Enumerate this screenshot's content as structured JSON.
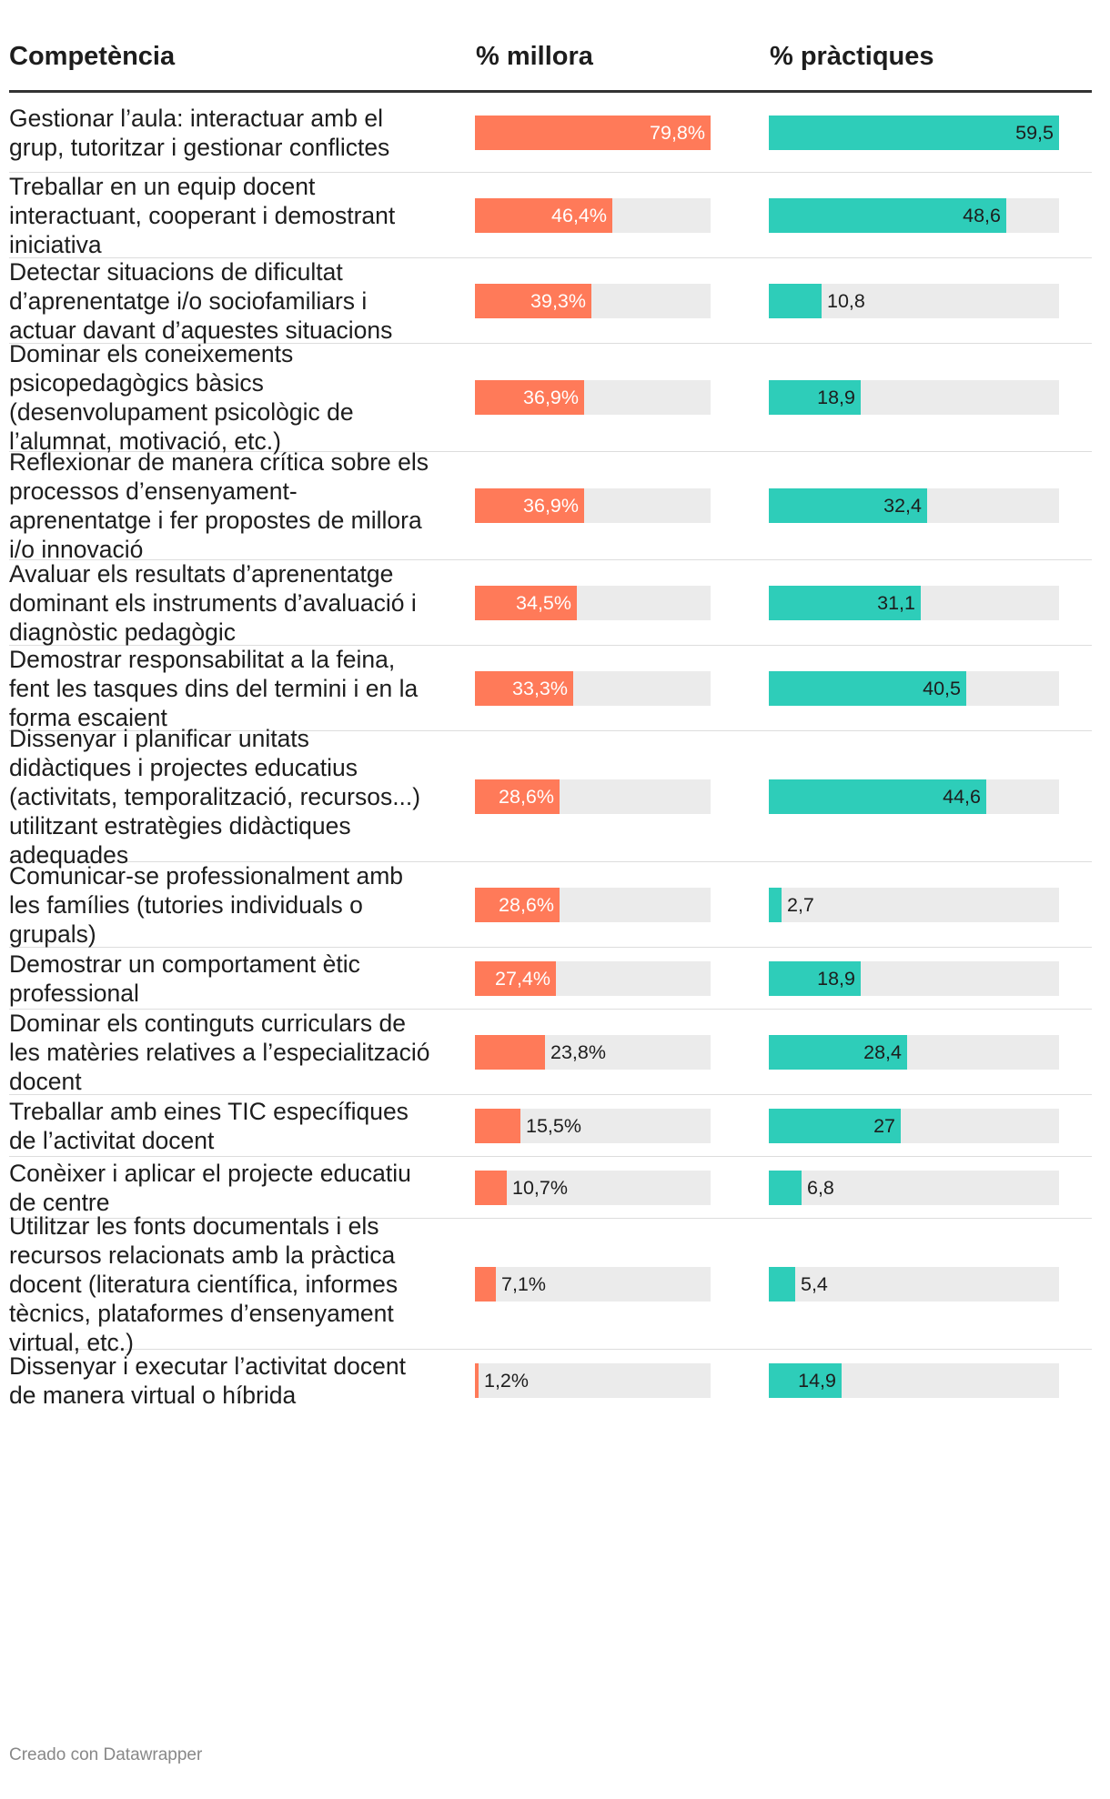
{
  "chart_data": {
    "type": "table",
    "headers": {
      "competencia": "Competència",
      "millora": "% millora",
      "practiques": "% pràctiques"
    },
    "colors": {
      "millora": "#ff7a59",
      "practiques": "#2ecdb9",
      "track": "#ebebeb"
    },
    "scales": {
      "millora_max": 79.8,
      "practiques_max": 59.5
    },
    "rows": [
      {
        "competencia": "Gestionar l’aula: interactuar amb el grup, tutoritzar i gestionar conflictes",
        "millora": 79.8,
        "millora_label": "79,8%",
        "practiques": 59.5,
        "practiques_label": "59,5"
      },
      {
        "competencia": "Treballar en un equip docent interactuant, cooperant i demostrant iniciativa",
        "millora": 46.4,
        "millora_label": "46,4%",
        "practiques": 48.6,
        "practiques_label": "48,6"
      },
      {
        "competencia": "Detectar situacions de dificultat d’aprenentatge i/o sociofamiliars i actuar davant d’aquestes situacions",
        "millora": 39.3,
        "millora_label": "39,3%",
        "practiques": 10.8,
        "practiques_label": "10,8"
      },
      {
        "competencia": "Dominar els coneixements psicopedagògics bàsics (desenvolupament psicològic de l’alumnat, motivació, etc.)",
        "millora": 36.9,
        "millora_label": "36,9%",
        "practiques": 18.9,
        "practiques_label": "18,9"
      },
      {
        "competencia": "Reflexionar de manera crítica sobre els processos d’ensenyament-aprenentatge i fer propostes de millora i/o innovació",
        "millora": 36.9,
        "millora_label": "36,9%",
        "practiques": 32.4,
        "practiques_label": "32,4"
      },
      {
        "competencia": "Avaluar els resultats d’aprenentatge dominant els instruments d’avaluació i diagnòstic pedagògic",
        "millora": 34.5,
        "millora_label": "34,5%",
        "practiques": 31.1,
        "practiques_label": "31,1"
      },
      {
        "competencia": "Demostrar responsabilitat a la feina, fent les tasques dins del termini i en la forma escaient",
        "millora": 33.3,
        "millora_label": "33,3%",
        "practiques": 40.5,
        "practiques_label": "40,5"
      },
      {
        "competencia": "Dissenyar i planificar unitats didàctiques i projectes educatius (activitats, temporalització, recursos...) utilitzant estratègies didàctiques adequades",
        "millora": 28.6,
        "millora_label": "28,6%",
        "practiques": 44.6,
        "practiques_label": "44,6"
      },
      {
        "competencia": "Comunicar-se professionalment amb les famílies (tutories individuals o grupals)",
        "millora": 28.6,
        "millora_label": "28,6%",
        "practiques": 2.7,
        "practiques_label": "2,7"
      },
      {
        "competencia": "Demostrar un comportament ètic professional",
        "millora": 27.4,
        "millora_label": "27,4%",
        "practiques": 18.9,
        "practiques_label": "18,9"
      },
      {
        "competencia": "Dominar els continguts curriculars de les matèries relatives a l’especialització docent",
        "millora": 23.8,
        "millora_label": "23,8%",
        "practiques": 28.4,
        "practiques_label": "28,4"
      },
      {
        "competencia": "Treballar amb eines TIC específiques de l’activitat docent",
        "millora": 15.5,
        "millora_label": "15,5%",
        "practiques": 27,
        "practiques_label": "27"
      },
      {
        "competencia": "Conèixer i aplicar el projecte educatiu de centre",
        "millora": 10.7,
        "millora_label": "10,7%",
        "practiques": 6.8,
        "practiques_label": "6,8"
      },
      {
        "competencia": "Utilitzar les fonts documentals i els recursos relacionats amb la pràctica docent (literatura científica, informes tècnics, plataformes d’ensenyament virtual, etc.)",
        "millora": 7.1,
        "millora_label": "7,1%",
        "practiques": 5.4,
        "practiques_label": "5,4"
      },
      {
        "competencia": "Dissenyar i executar l’activitat docent de manera virtual o híbrida",
        "millora": 1.2,
        "millora_label": "1,2%",
        "practiques": 14.9,
        "practiques_label": "14,9"
      }
    ]
  },
  "footer": {
    "credit": "Creado con Datawrapper"
  }
}
